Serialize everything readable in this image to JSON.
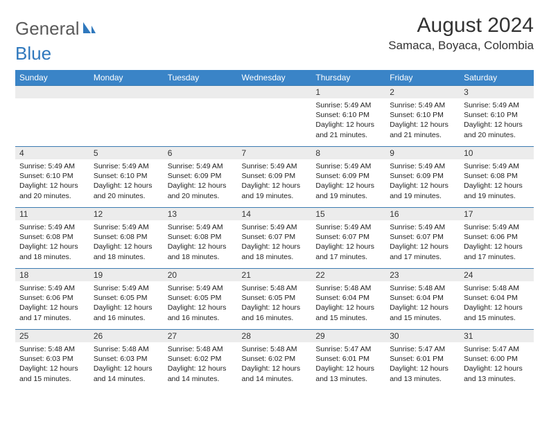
{
  "brand": {
    "name_gray": "General",
    "name_blue": "Blue"
  },
  "title": "August 2024",
  "location": "Samaca, Boyaca, Colombia",
  "colors": {
    "header_bg": "#3a84c7",
    "header_text": "#ffffff",
    "row_border": "#3a7ab0",
    "daynum_bg": "#ececec",
    "brand_gray": "#5a5a5a",
    "brand_blue": "#2f78bd",
    "page_bg": "#ffffff",
    "text": "#222222"
  },
  "day_headers": [
    "Sunday",
    "Monday",
    "Tuesday",
    "Wednesday",
    "Thursday",
    "Friday",
    "Saturday"
  ],
  "weeks": [
    [
      {
        "n": "",
        "sunrise": "",
        "sunset": "",
        "daylight": ""
      },
      {
        "n": "",
        "sunrise": "",
        "sunset": "",
        "daylight": ""
      },
      {
        "n": "",
        "sunrise": "",
        "sunset": "",
        "daylight": ""
      },
      {
        "n": "",
        "sunrise": "",
        "sunset": "",
        "daylight": ""
      },
      {
        "n": "1",
        "sunrise": "Sunrise: 5:49 AM",
        "sunset": "Sunset: 6:10 PM",
        "daylight": "Daylight: 12 hours and 21 minutes."
      },
      {
        "n": "2",
        "sunrise": "Sunrise: 5:49 AM",
        "sunset": "Sunset: 6:10 PM",
        "daylight": "Daylight: 12 hours and 21 minutes."
      },
      {
        "n": "3",
        "sunrise": "Sunrise: 5:49 AM",
        "sunset": "Sunset: 6:10 PM",
        "daylight": "Daylight: 12 hours and 20 minutes."
      }
    ],
    [
      {
        "n": "4",
        "sunrise": "Sunrise: 5:49 AM",
        "sunset": "Sunset: 6:10 PM",
        "daylight": "Daylight: 12 hours and 20 minutes."
      },
      {
        "n": "5",
        "sunrise": "Sunrise: 5:49 AM",
        "sunset": "Sunset: 6:10 PM",
        "daylight": "Daylight: 12 hours and 20 minutes."
      },
      {
        "n": "6",
        "sunrise": "Sunrise: 5:49 AM",
        "sunset": "Sunset: 6:09 PM",
        "daylight": "Daylight: 12 hours and 20 minutes."
      },
      {
        "n": "7",
        "sunrise": "Sunrise: 5:49 AM",
        "sunset": "Sunset: 6:09 PM",
        "daylight": "Daylight: 12 hours and 19 minutes."
      },
      {
        "n": "8",
        "sunrise": "Sunrise: 5:49 AM",
        "sunset": "Sunset: 6:09 PM",
        "daylight": "Daylight: 12 hours and 19 minutes."
      },
      {
        "n": "9",
        "sunrise": "Sunrise: 5:49 AM",
        "sunset": "Sunset: 6:09 PM",
        "daylight": "Daylight: 12 hours and 19 minutes."
      },
      {
        "n": "10",
        "sunrise": "Sunrise: 5:49 AM",
        "sunset": "Sunset: 6:08 PM",
        "daylight": "Daylight: 12 hours and 19 minutes."
      }
    ],
    [
      {
        "n": "11",
        "sunrise": "Sunrise: 5:49 AM",
        "sunset": "Sunset: 6:08 PM",
        "daylight": "Daylight: 12 hours and 18 minutes."
      },
      {
        "n": "12",
        "sunrise": "Sunrise: 5:49 AM",
        "sunset": "Sunset: 6:08 PM",
        "daylight": "Daylight: 12 hours and 18 minutes."
      },
      {
        "n": "13",
        "sunrise": "Sunrise: 5:49 AM",
        "sunset": "Sunset: 6:08 PM",
        "daylight": "Daylight: 12 hours and 18 minutes."
      },
      {
        "n": "14",
        "sunrise": "Sunrise: 5:49 AM",
        "sunset": "Sunset: 6:07 PM",
        "daylight": "Daylight: 12 hours and 18 minutes."
      },
      {
        "n": "15",
        "sunrise": "Sunrise: 5:49 AM",
        "sunset": "Sunset: 6:07 PM",
        "daylight": "Daylight: 12 hours and 17 minutes."
      },
      {
        "n": "16",
        "sunrise": "Sunrise: 5:49 AM",
        "sunset": "Sunset: 6:07 PM",
        "daylight": "Daylight: 12 hours and 17 minutes."
      },
      {
        "n": "17",
        "sunrise": "Sunrise: 5:49 AM",
        "sunset": "Sunset: 6:06 PM",
        "daylight": "Daylight: 12 hours and 17 minutes."
      }
    ],
    [
      {
        "n": "18",
        "sunrise": "Sunrise: 5:49 AM",
        "sunset": "Sunset: 6:06 PM",
        "daylight": "Daylight: 12 hours and 17 minutes."
      },
      {
        "n": "19",
        "sunrise": "Sunrise: 5:49 AM",
        "sunset": "Sunset: 6:05 PM",
        "daylight": "Daylight: 12 hours and 16 minutes."
      },
      {
        "n": "20",
        "sunrise": "Sunrise: 5:49 AM",
        "sunset": "Sunset: 6:05 PM",
        "daylight": "Daylight: 12 hours and 16 minutes."
      },
      {
        "n": "21",
        "sunrise": "Sunrise: 5:48 AM",
        "sunset": "Sunset: 6:05 PM",
        "daylight": "Daylight: 12 hours and 16 minutes."
      },
      {
        "n": "22",
        "sunrise": "Sunrise: 5:48 AM",
        "sunset": "Sunset: 6:04 PM",
        "daylight": "Daylight: 12 hours and 15 minutes."
      },
      {
        "n": "23",
        "sunrise": "Sunrise: 5:48 AM",
        "sunset": "Sunset: 6:04 PM",
        "daylight": "Daylight: 12 hours and 15 minutes."
      },
      {
        "n": "24",
        "sunrise": "Sunrise: 5:48 AM",
        "sunset": "Sunset: 6:04 PM",
        "daylight": "Daylight: 12 hours and 15 minutes."
      }
    ],
    [
      {
        "n": "25",
        "sunrise": "Sunrise: 5:48 AM",
        "sunset": "Sunset: 6:03 PM",
        "daylight": "Daylight: 12 hours and 15 minutes."
      },
      {
        "n": "26",
        "sunrise": "Sunrise: 5:48 AM",
        "sunset": "Sunset: 6:03 PM",
        "daylight": "Daylight: 12 hours and 14 minutes."
      },
      {
        "n": "27",
        "sunrise": "Sunrise: 5:48 AM",
        "sunset": "Sunset: 6:02 PM",
        "daylight": "Daylight: 12 hours and 14 minutes."
      },
      {
        "n": "28",
        "sunrise": "Sunrise: 5:48 AM",
        "sunset": "Sunset: 6:02 PM",
        "daylight": "Daylight: 12 hours and 14 minutes."
      },
      {
        "n": "29",
        "sunrise": "Sunrise: 5:47 AM",
        "sunset": "Sunset: 6:01 PM",
        "daylight": "Daylight: 12 hours and 13 minutes."
      },
      {
        "n": "30",
        "sunrise": "Sunrise: 5:47 AM",
        "sunset": "Sunset: 6:01 PM",
        "daylight": "Daylight: 12 hours and 13 minutes."
      },
      {
        "n": "31",
        "sunrise": "Sunrise: 5:47 AM",
        "sunset": "Sunset: 6:00 PM",
        "daylight": "Daylight: 12 hours and 13 minutes."
      }
    ]
  ]
}
